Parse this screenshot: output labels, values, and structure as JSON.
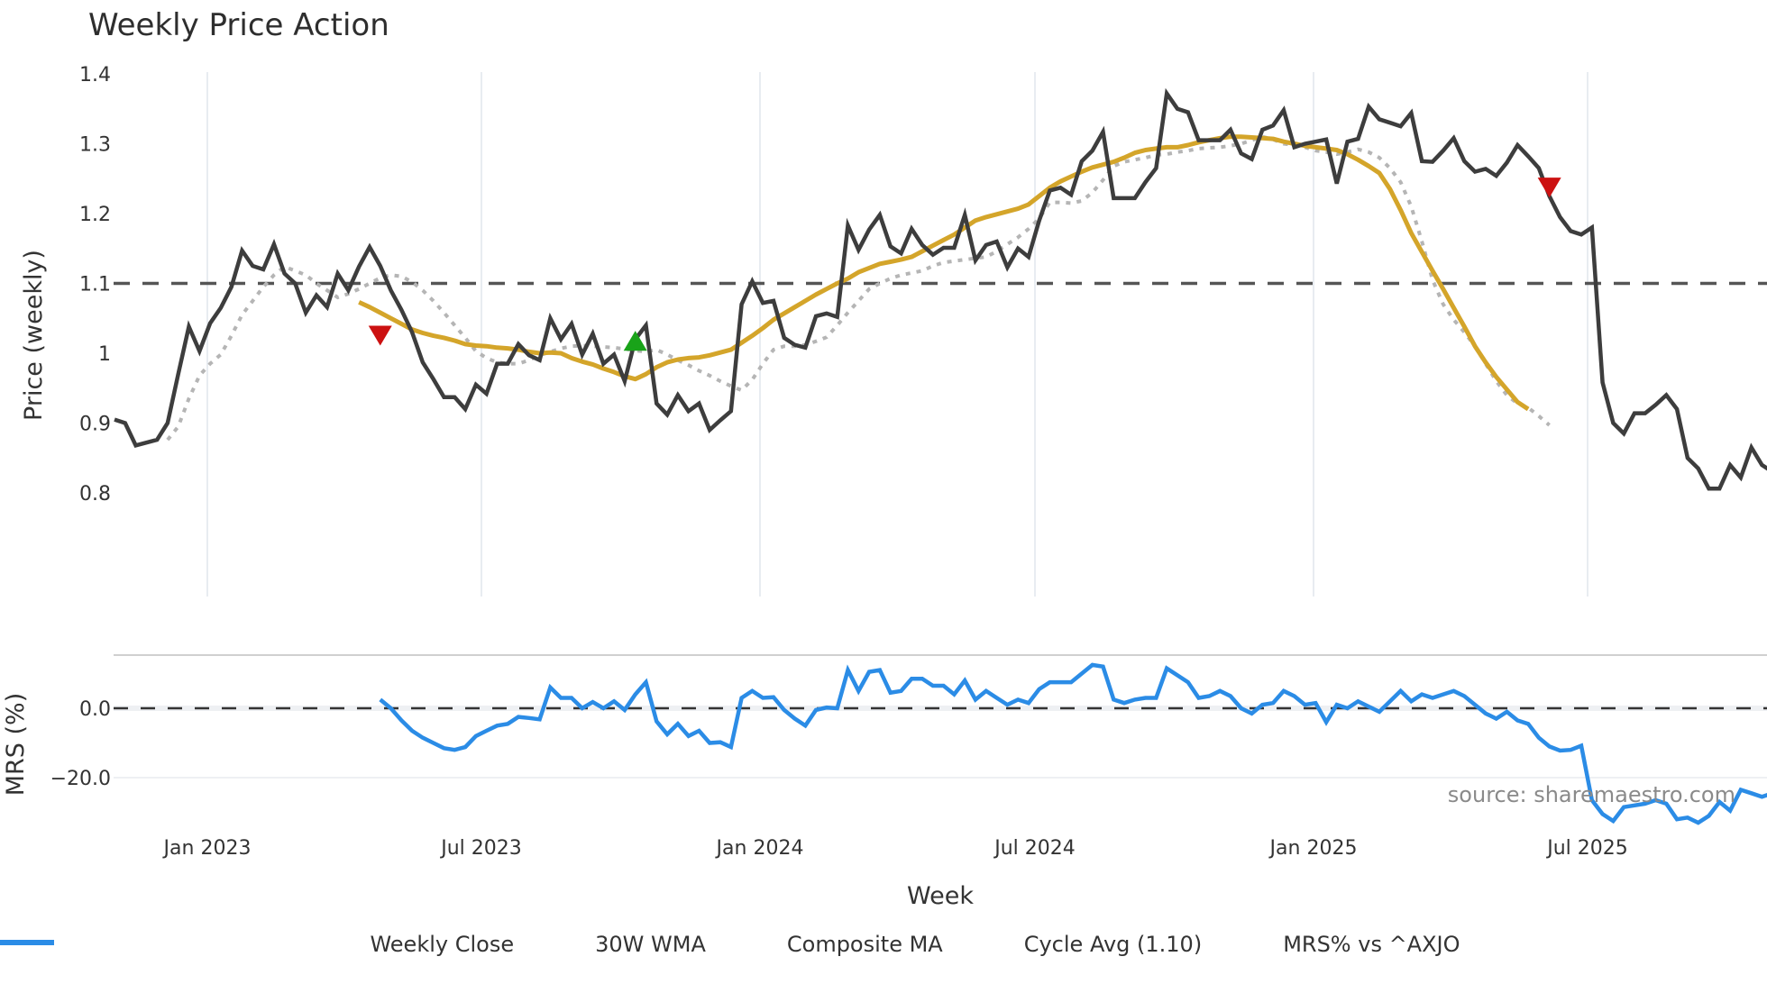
{
  "title": "Weekly Price Action",
  "source_note": "source: sharemaestro.com",
  "colors": {
    "weekly_close": "#3d3d3d",
    "wma30": "#d4a52a",
    "composite_ma": "#b5b5b5",
    "cycle_avg": "#555555",
    "mrs": "#2b8ce6",
    "sell_marker": "#cc1111",
    "buy_marker": "#19a319",
    "grid": "#e8ecf1"
  },
  "axes": {
    "price_ylabel": "Price (weekly)",
    "mrs_ylabel": "MRS (%)",
    "xlabel": "Week",
    "price_ticks": [
      "1.4",
      "1.3",
      "1.2",
      "1.1",
      "1",
      "0.9",
      "0.8"
    ],
    "mrs_ticks": [
      "0.0",
      "−20.0"
    ],
    "x_ticks": [
      "Jan 2023",
      "Jul 2023",
      "Jan 2024",
      "Jul 2024",
      "Jan 2025",
      "Jul 2025"
    ]
  },
  "legend": [
    {
      "label": "Weekly Close",
      "style": "solid",
      "color": "#3d3d3d"
    },
    {
      "label": "30W WMA",
      "style": "solid",
      "color": "#d4a52a"
    },
    {
      "label": "Composite MA",
      "style": "dotted",
      "color": "#b5b5b5"
    },
    {
      "label": "Cycle Avg (1.10)",
      "style": "dashed",
      "color": "#555555"
    },
    {
      "label": "MRS% vs ^AXJO",
      "style": "solid",
      "color": "#2b8ce6"
    }
  ],
  "chart_data": [
    {
      "type": "line",
      "title": "Weekly Price Action",
      "xlabel": "Week",
      "ylabel": "Price (weekly)",
      "ylim": [
        0.77,
        1.41
      ],
      "x_tick_labels": [
        "Jan 2023",
        "Jul 2023",
        "Jan 2024",
        "Jul 2024",
        "Jan 2025",
        "Jul 2025"
      ],
      "x_start_week_offset": -8.7,
      "legend_position": "bottom",
      "grid": "vertical",
      "cycle_avg": 1.1,
      "series": [
        {
          "name": "Weekly Close",
          "start_week": 0,
          "values": [
            0.905,
            0.9,
            0.868,
            0.872,
            0.876,
            0.9,
            0.97,
            1.038,
            1.003,
            1.043,
            1.065,
            1.095,
            1.147,
            1.125,
            1.12,
            1.156,
            1.114,
            1.1,
            1.058,
            1.083,
            1.066,
            1.114,
            1.09,
            1.124,
            1.152,
            1.125,
            1.09,
            1.062,
            1.03,
            0.987,
            0.963,
            0.937,
            0.937,
            0.92,
            0.955,
            0.942,
            0.985,
            0.985,
            1.013,
            0.997,
            0.99,
            1.05,
            1.02,
            1.042,
            0.998,
            1.028,
            0.985,
            0.998,
            0.96,
            1.02,
            1.04,
            0.928,
            0.912,
            0.94,
            0.917,
            0.928,
            0.89,
            0.904,
            0.917,
            1.07,
            1.103,
            1.072,
            1.075,
            1.022,
            1.012,
            1.008,
            1.053,
            1.057,
            1.052,
            1.183,
            1.148,
            1.177,
            1.198,
            1.153,
            1.143,
            1.178,
            1.155,
            1.141,
            1.151,
            1.151,
            1.198,
            1.133,
            1.155,
            1.16,
            1.123,
            1.15,
            1.138,
            1.19,
            1.233,
            1.237,
            1.227,
            1.275,
            1.29,
            1.317,
            1.222,
            1.222,
            1.222,
            1.245,
            1.265,
            1.372,
            1.35,
            1.345,
            1.305,
            1.305,
            1.305,
            1.32,
            1.286,
            1.278,
            1.32,
            1.326,
            1.348,
            1.295,
            1.3,
            1.303,
            1.306,
            1.243,
            1.303,
            1.307,
            1.353,
            1.335,
            1.33,
            1.325,
            1.344,
            1.275,
            1.274,
            1.29,
            1.308,
            1.275,
            1.26,
            1.264,
            1.254,
            1.273,
            1.298,
            1.282,
            1.265,
            1.225,
            1.195,
            1.175,
            1.17,
            1.18,
            0.958,
            0.9,
            0.885,
            0.914,
            0.914,
            0.926,
            0.94,
            0.92,
            0.85,
            0.835,
            0.806,
            0.806,
            0.84,
            0.822,
            0.865,
            0.84,
            0.83,
            0.826
          ]
        },
        {
          "name": "30W WMA",
          "start_week": 23,
          "values": [
            1.073,
            1.066,
            1.058,
            1.05,
            1.042,
            1.034,
            1.029,
            1.025,
            1.022,
            1.018,
            1.013,
            1.011,
            1.01,
            1.008,
            1.007,
            1.005,
            1.002,
            1.0,
            1.001,
            1.0,
            0.993,
            0.988,
            0.984,
            0.978,
            0.973,
            0.967,
            0.963,
            0.97,
            0.98,
            0.987,
            0.991,
            0.993,
            0.994,
            0.997,
            1.001,
            1.005,
            1.015,
            1.025,
            1.036,
            1.048,
            1.057,
            1.066,
            1.075,
            1.084,
            1.092,
            1.1,
            1.107,
            1.116,
            1.122,
            1.128,
            1.131,
            1.134,
            1.138,
            1.146,
            1.154,
            1.162,
            1.17,
            1.18,
            1.19,
            1.195,
            1.199,
            1.203,
            1.207,
            1.213,
            1.225,
            1.237,
            1.246,
            1.253,
            1.26,
            1.266,
            1.27,
            1.274,
            1.28,
            1.287,
            1.291,
            1.293,
            1.295,
            1.295,
            1.298,
            1.302,
            1.305,
            1.308,
            1.31,
            1.31,
            1.309,
            1.308,
            1.307,
            1.303,
            1.3,
            1.297,
            1.295,
            1.293,
            1.291,
            1.285,
            1.277,
            1.268,
            1.258,
            1.235,
            1.205,
            1.172,
            1.145,
            1.118,
            1.092,
            1.065,
            1.038,
            1.01,
            0.987,
            0.966,
            0.948,
            0.93,
            0.92
          ]
        },
        {
          "name": "Composite MA",
          "start_week": 5,
          "values": [
            0.876,
            0.895,
            0.935,
            0.968,
            0.985,
            0.998,
            1.025,
            1.055,
            1.075,
            1.095,
            1.112,
            1.124,
            1.118,
            1.112,
            1.1,
            1.09,
            1.08,
            1.085,
            1.092,
            1.1,
            1.108,
            1.112,
            1.11,
            1.102,
            1.09,
            1.075,
            1.058,
            1.04,
            1.022,
            1.003,
            0.993,
            0.987,
            0.985,
            0.985,
            0.99,
            0.997,
            1.002,
            1.007,
            1.01,
            1.011,
            1.01,
            1.009,
            1.008,
            1.006,
            1.004,
            1.002,
            1.005,
            0.998,
            0.99,
            0.983,
            0.975,
            0.968,
            0.96,
            0.953,
            0.947,
            0.962,
            0.985,
            1.005,
            1.01,
            1.01,
            1.012,
            1.017,
            1.023,
            1.04,
            1.058,
            1.075,
            1.092,
            1.1,
            1.107,
            1.112,
            1.115,
            1.118,
            1.125,
            1.13,
            1.132,
            1.134,
            1.136,
            1.138,
            1.146,
            1.156,
            1.166,
            1.178,
            1.193,
            1.216,
            1.216,
            1.215,
            1.218,
            1.23,
            1.248,
            1.268,
            1.274,
            1.277,
            1.28,
            1.284,
            1.285,
            1.288,
            1.29,
            1.293,
            1.294,
            1.295,
            1.297,
            1.3,
            1.305,
            1.31,
            1.306,
            1.3,
            1.298,
            1.295,
            1.29,
            1.288,
            1.285,
            1.288,
            1.292,
            1.288,
            1.28,
            1.265,
            1.245,
            1.21,
            1.16,
            1.105,
            1.07,
            1.048,
            1.03,
            1.01,
            0.985,
            0.96,
            0.94,
            0.928,
            0.922,
            0.91,
            0.897
          ]
        },
        {
          "name": "Cycle Avg (1.10)",
          "constant": 1.1
        }
      ],
      "markers": [
        {
          "type": "sell",
          "shape": "triangle-down",
          "week": 25,
          "price": 1.026
        },
        {
          "type": "buy",
          "shape": "triangle-up",
          "week": 49,
          "price": 1.017
        },
        {
          "type": "sell",
          "shape": "triangle-down",
          "week": 135,
          "price": 1.238
        }
      ]
    },
    {
      "type": "line",
      "title": "",
      "ylabel": "MRS (%)",
      "ylim": [
        -35,
        14
      ],
      "zero_line": "dashed",
      "series": [
        {
          "name": "MRS% vs ^AXJO",
          "start_week": 25,
          "values": [
            2.5,
            0.0,
            -3.5,
            -6.5,
            -8.5,
            -10.0,
            -11.5,
            -12.0,
            -11.2,
            -8.0,
            -6.5,
            -5.0,
            -4.5,
            -2.5,
            -2.8,
            -3.2,
            6.0,
            3.0,
            3.0,
            0.0,
            1.8,
            0.0,
            2.0,
            -0.5,
            4.0,
            7.5,
            -3.8,
            -7.5,
            -4.5,
            -8.0,
            -6.5,
            -10.0,
            -9.8,
            -11.2,
            3.0,
            5.0,
            3.0,
            3.2,
            -0.5,
            -3.0,
            -5.0,
            -0.5,
            0.2,
            0.0,
            11.0,
            5.0,
            10.5,
            11.0,
            4.5,
            5.0,
            8.5,
            8.5,
            6.5,
            6.5,
            4.0,
            8.0,
            2.5,
            5.0,
            3.0,
            1.0,
            2.5,
            1.5,
            5.5,
            7.5,
            7.5,
            7.5,
            10.0,
            12.5,
            12.0,
            2.5,
            1.5,
            2.5,
            3.0,
            3.0,
            11.5,
            9.5,
            7.5,
            3.0,
            3.5,
            5.0,
            3.5,
            0.0,
            -1.5,
            1.0,
            1.5,
            5.0,
            3.5,
            1.0,
            1.5,
            -4.0,
            1.0,
            0.0,
            2.0,
            0.5,
            -1.0,
            2.0,
            5.0,
            2.0,
            4.0,
            3.0,
            4.0,
            5.0,
            3.5,
            1.0,
            -1.5,
            -3.0,
            -1.0,
            -3.5,
            -4.5,
            -8.5,
            -11.0,
            -12.2,
            -12.0,
            -10.8,
            -26.5,
            -30.5,
            -32.5,
            -28.5,
            -28.0,
            -27.5,
            -26.5,
            -27.5,
            -32.0,
            -31.5,
            -33.0,
            -31.0,
            -27.0,
            -29.5,
            -23.5,
            -24.5,
            -25.5,
            -24.5
          ]
        }
      ]
    }
  ]
}
